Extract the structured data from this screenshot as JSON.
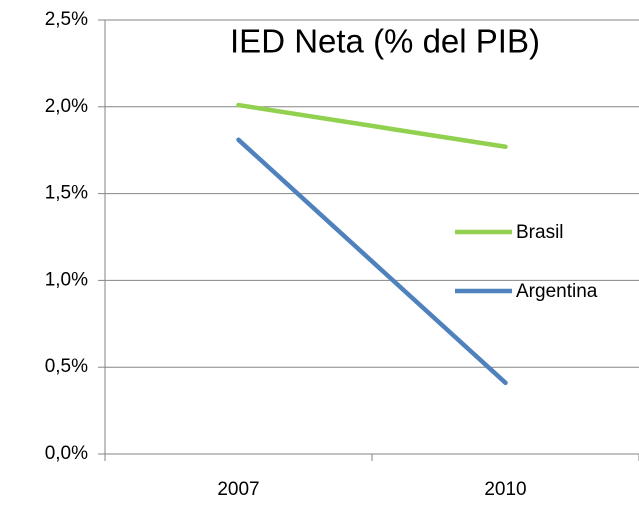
{
  "chart_data": {
    "type": "line",
    "title": "IED Neta (% del PIB)",
    "categories": [
      "2007",
      "2010"
    ],
    "series": [
      {
        "name": "Brasil",
        "color": "#92d050",
        "values": [
          2.01,
          1.77
        ]
      },
      {
        "name": "Argentina",
        "color": "#4f81bd",
        "values": [
          1.81,
          0.41
        ]
      }
    ],
    "ylim": [
      0,
      2.5
    ],
    "yticks": [
      {
        "value": 0,
        "label": "0,0%"
      },
      {
        "value": 0.5,
        "label": "0,5%"
      },
      {
        "value": 1,
        "label": "1,0%"
      },
      {
        "value": 1.5,
        "label": "1,5%"
      },
      {
        "value": 2,
        "label": "2,0%"
      },
      {
        "value": 2.5,
        "label": "2,5%"
      }
    ],
    "grid": true,
    "legend": "right"
  }
}
